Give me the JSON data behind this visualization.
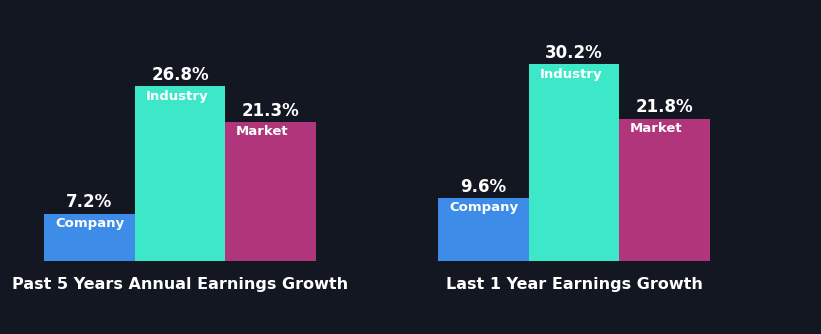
{
  "background_color": "#131722",
  "groups": [
    {
      "title": "Past 5 Years Annual Earnings Growth",
      "bars": [
        {
          "label": "Company",
          "value": 7.2,
          "color": "#3d8ce8"
        },
        {
          "label": "Industry",
          "value": 26.8,
          "color": "#3de8c8"
        },
        {
          "label": "Market",
          "value": 21.3,
          "color": "#b0357a"
        }
      ]
    },
    {
      "title": "Last 1 Year Earnings Growth",
      "bars": [
        {
          "label": "Company",
          "value": 9.6,
          "color": "#3d8ce8"
        },
        {
          "label": "Industry",
          "value": 30.2,
          "color": "#3de8c8"
        },
        {
          "label": "Market",
          "value": 21.8,
          "color": "#b0357a"
        }
      ]
    }
  ],
  "label_color": "#ffffff",
  "value_color": "#ffffff",
  "title_color": "#ffffff",
  "bar_width": 0.115,
  "title_fontsize": 11.5,
  "value_fontsize": 12,
  "label_fontsize": 9.5,
  "ylim_max": 36
}
